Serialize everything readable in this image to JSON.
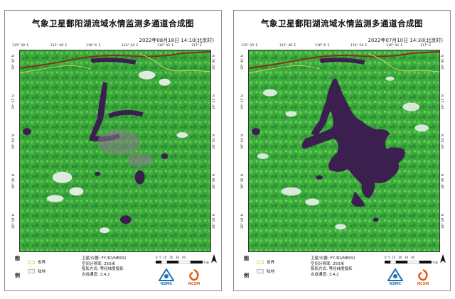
{
  "panels": [
    {
      "title": "气象卫星鄱阳湖流域水情监测多通道合成图",
      "datetime": "2022年08月18日  14:10(北京时)",
      "lake_state": "shrunk"
    },
    {
      "title": "气象卫星鄱阳湖流域水情监测多通道合成图",
      "datetime": "2022年07月10日  14:30(北京时)",
      "lake_state": "full"
    }
  ],
  "axes": {
    "x_ticks": [
      "115° 30′ E",
      "115° 48′ E",
      "116° 6′ E",
      "116° 24′ E",
      "116° 42′ E",
      "117° E"
    ],
    "y_ticks": [
      "29° 30′ N",
      "29° 12′ N",
      "28° 54′ N",
      "28° 36′ N",
      "28° 18′ N"
    ]
  },
  "legend": {
    "head_top": "图",
    "head_bottom": "例",
    "items": [
      {
        "label": "省界",
        "swatch": "province-border"
      },
      {
        "label": "陆地",
        "swatch": "land"
      }
    ]
  },
  "info": {
    "lines": [
      "卫星/仪器: FY-3D/MERSI",
      "空间分辨率: 250米",
      "投影方式: 等经纬度投影",
      "合成通道: 3,4,2"
    ]
  },
  "scale": {
    "labels": [
      "0",
      "5",
      "10",
      "20",
      "30",
      "40"
    ],
    "unit": "千米"
  },
  "north_symbol": "N",
  "logos": [
    {
      "name": "NSMC",
      "icon": "nsmc-logo",
      "color": "#1f6fb5"
    },
    {
      "name": "NCSM",
      "icon": "ncsm-logo",
      "color": "#e25a1c"
    }
  ],
  "colors": {
    "vegetation": "#3aa83a",
    "vegetation_light": "#6ad05a",
    "water": "#3a1f4f",
    "cloud": "#f4f4f4",
    "border": "#e6d96b",
    "river": "#8a2b1e"
  }
}
